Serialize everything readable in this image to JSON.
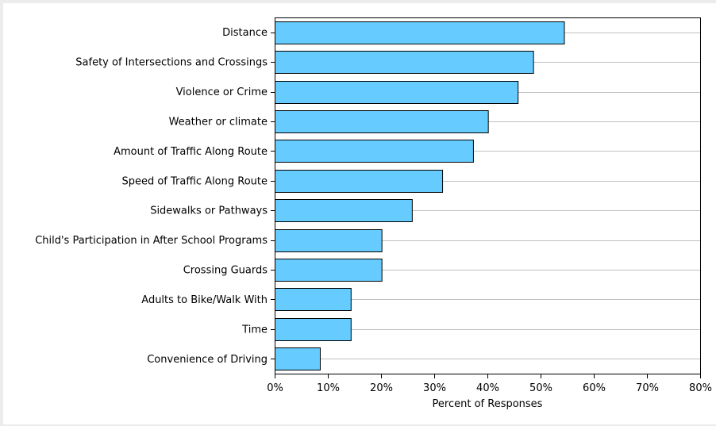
{
  "chart_data": {
    "type": "bar",
    "orientation": "horizontal",
    "categories": [
      "Distance",
      "Safety of Intersections and Crossings",
      "Violence or Crime",
      "Weather or climate",
      "Amount of Traffic Along Route",
      "Speed of Traffic Along Route",
      "Sidewalks or Pathways",
      "Child's Participation in After School Programs",
      "Crossing Guards",
      "Adults to Bike/Walk With",
      "Time",
      "Convenience of Driving"
    ],
    "values": [
      54.4,
      48.6,
      45.7,
      40.1,
      37.3,
      31.5,
      25.8,
      20.1,
      20.1,
      14.3,
      14.3,
      8.5
    ],
    "title": "",
    "xlabel": "Percent of Responses",
    "ylabel": "",
    "xlim": [
      0,
      80
    ],
    "xticks": [
      0,
      10,
      20,
      30,
      40,
      50,
      60,
      70,
      80
    ],
    "xtick_labels": [
      "0%",
      "10%",
      "20%",
      "30%",
      "40%",
      "50%",
      "60%",
      "70%",
      "80%"
    ],
    "grid": "horizontal",
    "legend": "none",
    "bar_color": "#66ccff",
    "bar_edge_color": "#000000",
    "grid_color": "#c0c0c0"
  }
}
